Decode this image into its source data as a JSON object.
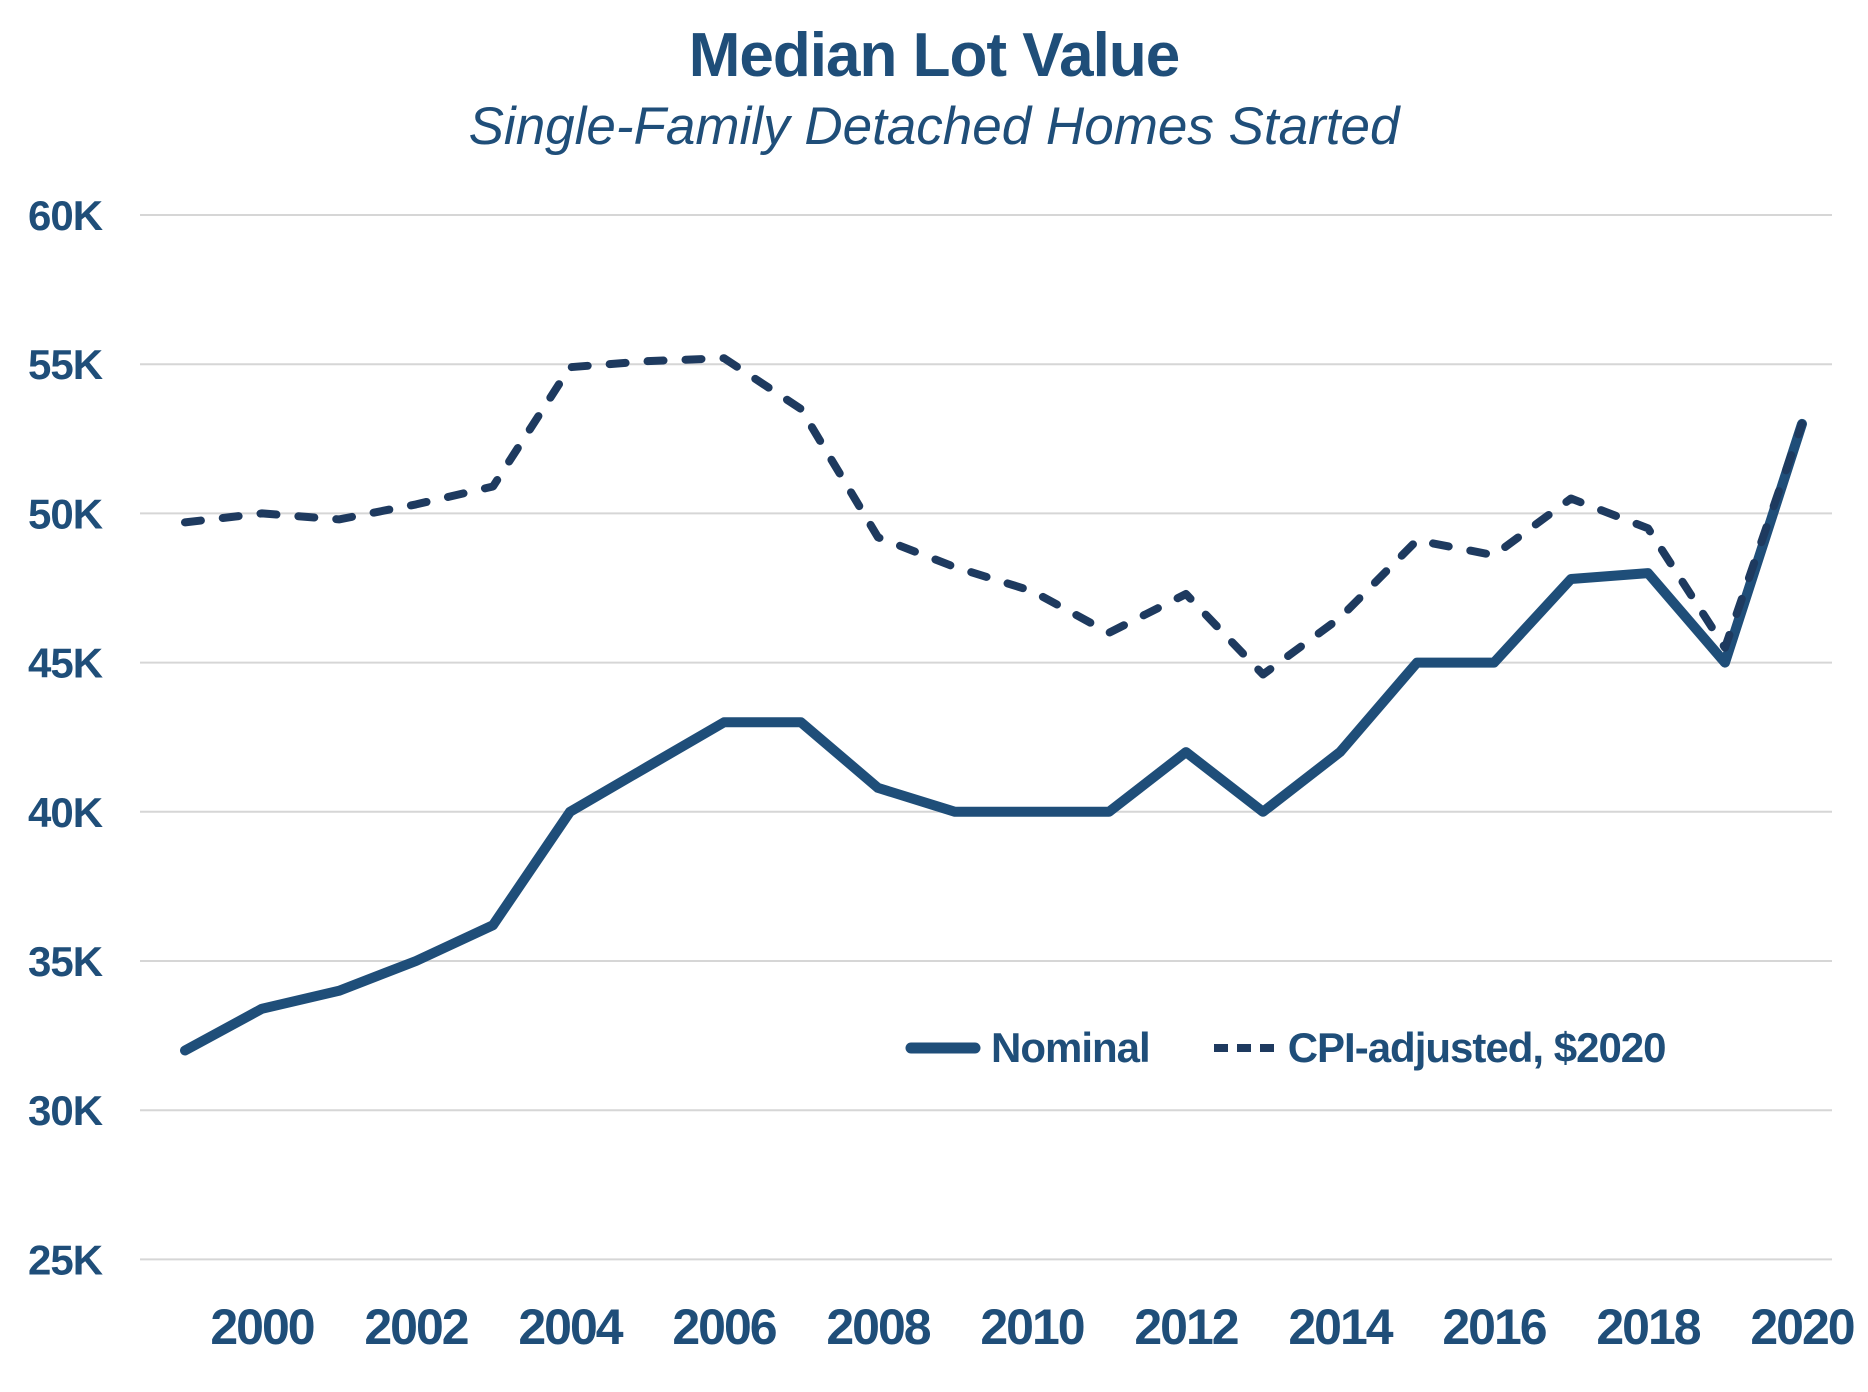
{
  "chart_data": {
    "type": "line",
    "title": "Median Lot Value",
    "subtitle": "Single-Family Detached Homes Started",
    "units": "thousands_usd",
    "x": [
      1999,
      2000,
      2001,
      2002,
      2003,
      2004,
      2005,
      2006,
      2007,
      2008,
      2009,
      2010,
      2011,
      2012,
      2013,
      2014,
      2015,
      2016,
      2017,
      2018,
      2019,
      2020
    ],
    "series": [
      {
        "name": "Nominal",
        "style": "solid",
        "color": "#1F4E79",
        "values": [
          32.0,
          33.4,
          34.0,
          35.0,
          36.2,
          40.0,
          41.5,
          43.0,
          43.0,
          40.8,
          40.0,
          40.0,
          40.0,
          42.0,
          40.0,
          42.0,
          45.0,
          45.0,
          47.8,
          48.0,
          45.0,
          53.0
        ]
      },
      {
        "name": "CPI-adjusted, $2020",
        "style": "dashed",
        "color": "#1E3A5F",
        "values": [
          49.7,
          50.0,
          49.8,
          50.3,
          50.9,
          54.9,
          55.1,
          55.2,
          53.5,
          49.2,
          48.2,
          47.4,
          46.0,
          47.3,
          44.6,
          46.5,
          49.1,
          48.6,
          50.5,
          49.5,
          45.5,
          53.0
        ]
      }
    ],
    "ylim": [
      25,
      60
    ],
    "yticks": [
      25,
      30,
      35,
      40,
      45,
      50,
      55,
      60
    ],
    "ytick_suffix": "K",
    "xticks": [
      2000,
      2002,
      2004,
      2006,
      2008,
      2010,
      2012,
      2014,
      2016,
      2018,
      2020
    ],
    "grid": "horizontal",
    "legend_position": "inside-lower-right"
  },
  "colors": {
    "text": "#1F4E79",
    "gridline": "#D6D6D6",
    "background": "#FFFFFF"
  }
}
